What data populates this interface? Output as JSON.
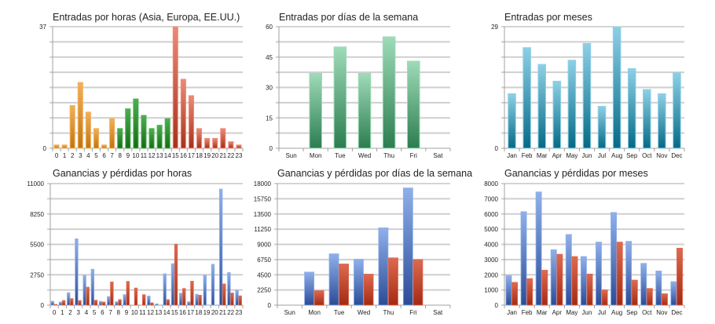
{
  "colors": {
    "orange": [
      "#f2b05a",
      "#c07410"
    ],
    "green": [
      "#4caf50",
      "#136b16"
    ],
    "red": [
      "#ec8b78",
      "#a8301a"
    ],
    "teal_green": [
      "#9fdbb8",
      "#2b7d50"
    ],
    "teal_blue": [
      "#8ed0e6",
      "#056a86"
    ],
    "blue": [
      "#8fb0ea",
      "#2b4c97"
    ],
    "loss_red": [
      "#dd6a50",
      "#a42a12"
    ]
  },
  "chart_data": [
    {
      "id": "entries-by-hour",
      "type": "bar",
      "title": "Entradas por horas (Asia, Europa, EE.UU.)",
      "categories": [
        "0",
        "1",
        "2",
        "3",
        "4",
        "5",
        "6",
        "7",
        "8",
        "9",
        "10",
        "11",
        "12",
        "13",
        "14",
        "15",
        "16",
        "17",
        "18",
        "19",
        "20",
        "21",
        "22",
        "23"
      ],
      "values": [
        1,
        1,
        13,
        20,
        11,
        6,
        1,
        9,
        6,
        12,
        15,
        10,
        6,
        7,
        9,
        37,
        21,
        16,
        6,
        3,
        3,
        6,
        2,
        1
      ],
      "bar_groups": [
        "orange",
        "orange",
        "orange",
        "orange",
        "orange",
        "orange",
        "orange",
        "orange",
        "green",
        "green",
        "green",
        "green",
        "green",
        "green",
        "green",
        "red",
        "red",
        "red",
        "red",
        "red",
        "red",
        "red",
        "red",
        "red"
      ],
      "ylim": [
        0,
        37
      ],
      "yticks": [
        "0",
        "37"
      ],
      "grid_divisions": 8,
      "xlabel": "",
      "ylabel": "",
      "grid": true
    },
    {
      "id": "entries-by-weekday",
      "type": "bar",
      "title": "Entradas por días de la semana",
      "categories": [
        "Sun",
        "Mon",
        "Tue",
        "Wed",
        "Thu",
        "Fri",
        "Sat"
      ],
      "values": [
        0,
        37,
        50,
        37,
        55,
        43,
        0
      ],
      "color": "teal_green",
      "ylim": [
        0,
        60
      ],
      "yticks": [
        "0",
        "15",
        "30",
        "45",
        "60"
      ],
      "grid_divisions": 8,
      "xlabel": "",
      "ylabel": "",
      "grid": true
    },
    {
      "id": "entries-by-month",
      "type": "bar",
      "title": "Entradas por meses",
      "categories": [
        "Jan",
        "Feb",
        "Mar",
        "Apr",
        "May",
        "Jun",
        "Jul",
        "Aug",
        "Sep",
        "Oct",
        "Nov",
        "Dec"
      ],
      "values": [
        13,
        24,
        20,
        16,
        21,
        25,
        10,
        29,
        19,
        14,
        13,
        18
      ],
      "color": "teal_blue",
      "ylim": [
        0,
        29
      ],
      "yticks": [
        "0",
        "29"
      ],
      "grid_divisions": 8,
      "xlabel": "",
      "ylabel": "",
      "grid": true
    },
    {
      "id": "profit-loss-by-hour",
      "type": "bar",
      "title": "Ganancias y pérdidas por horas",
      "categories": [
        "0",
        "1",
        "2",
        "3",
        "4",
        "5",
        "6",
        "7",
        "8",
        "9",
        "10",
        "11",
        "12",
        "13",
        "14",
        "15",
        "16",
        "17",
        "18",
        "19",
        "20",
        "21",
        "22",
        "23"
      ],
      "series": [
        {
          "name": "Ganancias",
          "color": "blue",
          "values": [
            350,
            280,
            1130,
            6000,
            2700,
            3250,
            350,
            780,
            310,
            950,
            0,
            0,
            830,
            120,
            2840,
            3750,
            1090,
            310,
            990,
            2720,
            3700,
            10500,
            2950,
            1360
          ]
        },
        {
          "name": "Pérdidas",
          "color": "loss_red",
          "values": [
            70,
            420,
            590,
            420,
            1630,
            450,
            280,
            2100,
            500,
            2150,
            1550,
            950,
            210,
            0,
            500,
            5520,
            1510,
            2170,
            900,
            0,
            0,
            1920,
            1100,
            840
          ]
        }
      ],
      "ylim": [
        0,
        11000
      ],
      "yticks": [
        "0",
        "2750",
        "5500",
        "8250",
        "11000"
      ],
      "grid_divisions": 8,
      "xlabel": "",
      "ylabel": "",
      "grid": true
    },
    {
      "id": "profit-loss-by-weekday",
      "type": "bar",
      "title": "Ganancias y pérdidas por días de la semana",
      "categories": [
        "Sun",
        "Mon",
        "Tue",
        "Wed",
        "Thu",
        "Fri",
        "Sat"
      ],
      "series": [
        {
          "name": "Ganancias",
          "color": "blue",
          "values": [
            0,
            4900,
            7600,
            6800,
            11450,
            17350,
            0
          ]
        },
        {
          "name": "Pérdidas",
          "color": "loss_red",
          "values": [
            0,
            2150,
            6100,
            4600,
            7000,
            6750,
            0
          ]
        }
      ],
      "ylim": [
        0,
        18000
      ],
      "yticks": [
        "0",
        "2250",
        "4500",
        "6750",
        "9000",
        "11250",
        "13500",
        "15750",
        "18000"
      ],
      "grid_divisions": 8,
      "xlabel": "",
      "ylabel": "",
      "grid": true
    },
    {
      "id": "profit-loss-by-month",
      "type": "bar",
      "title": "Ganancias y pérdidas por meses",
      "categories": [
        "Jan",
        "Feb",
        "Mar",
        "Apr",
        "May",
        "Jun",
        "Jul",
        "Aug",
        "Sep",
        "Oct",
        "Nov",
        "Dec"
      ],
      "series": [
        {
          "name": "Ganancias",
          "color": "blue",
          "values": [
            1950,
            6150,
            7450,
            3650,
            4650,
            3200,
            4150,
            6100,
            4200,
            2750,
            2250,
            1550
          ]
        },
        {
          "name": "Pérdidas",
          "color": "loss_red",
          "values": [
            1500,
            1750,
            2300,
            3350,
            3200,
            2050,
            1000,
            4150,
            1650,
            1100,
            750,
            3750
          ]
        }
      ],
      "ylim": [
        0,
        8000
      ],
      "yticks": [
        "0",
        "1000",
        "2000",
        "3000",
        "4000",
        "5000",
        "6000",
        "7000",
        "8000"
      ],
      "grid_divisions": 8,
      "xlabel": "",
      "ylabel": "",
      "grid": true
    }
  ]
}
